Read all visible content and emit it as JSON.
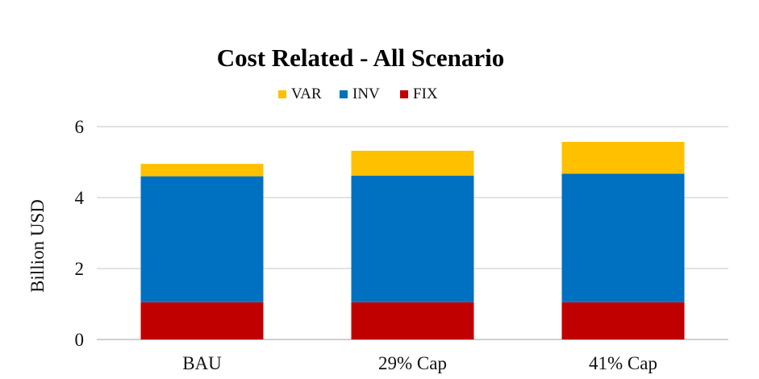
{
  "chart_data": {
    "type": "bar",
    "stacked": true,
    "title": "Cost Related - All Scenario",
    "xlabel": "",
    "ylabel": "Billion USD",
    "ylim": [
      0,
      6
    ],
    "yticks": [
      0,
      2,
      4,
      6
    ],
    "grid": true,
    "legend_position": "top",
    "categories": [
      "BAU",
      "29% Cap",
      "41% Cap"
    ],
    "series": [
      {
        "name": "FIX",
        "color": "#c00000",
        "values": [
          1.05,
          1.05,
          1.05
        ]
      },
      {
        "name": "INV",
        "color": "#0070c0",
        "values": [
          3.55,
          3.57,
          3.62
        ]
      },
      {
        "name": "VAR",
        "color": "#ffc000",
        "values": [
          0.35,
          0.7,
          0.9
        ]
      }
    ],
    "legend_order": [
      "VAR",
      "INV",
      "FIX"
    ]
  }
}
